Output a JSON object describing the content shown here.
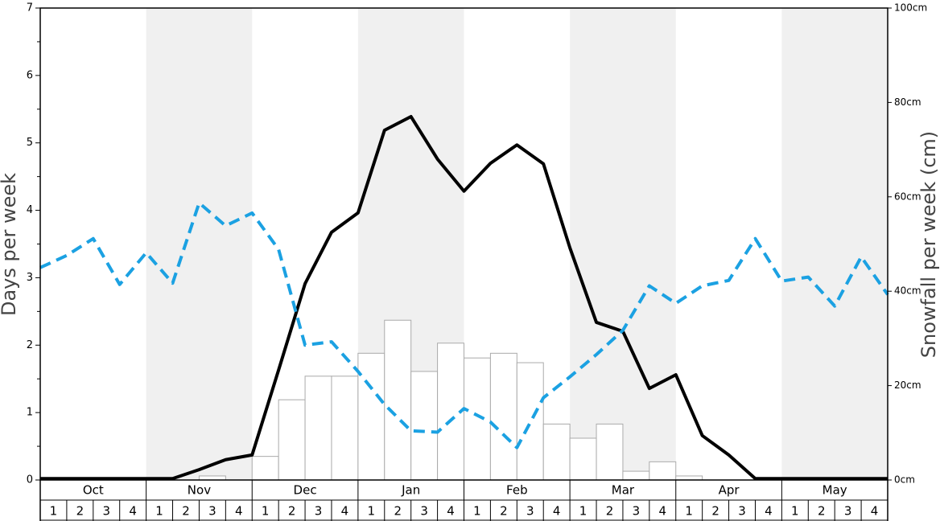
{
  "chart_data": {
    "type": "bar",
    "ylabel": "Days per week",
    "y2label": "Snowfall per week (cm)",
    "months": [
      "Oct",
      "Nov",
      "Dec",
      "Jan",
      "Feb",
      "Mar",
      "Apr",
      "May"
    ],
    "categories": [
      "1",
      "2",
      "3",
      "4",
      "1",
      "2",
      "3",
      "4",
      "1",
      "2",
      "3",
      "4",
      "1",
      "2",
      "3",
      "4",
      "1",
      "2",
      "3",
      "4",
      "1",
      "2",
      "3",
      "4",
      "1",
      "2",
      "3",
      "4",
      "1",
      "2",
      "3",
      "4"
    ],
    "values": [
      0,
      0,
      0,
      0,
      0,
      0,
      0.06,
      0,
      0.35,
      1.19,
      1.54,
      1.54,
      1.88,
      2.37,
      1.61,
      2.03,
      1.81,
      1.88,
      1.74,
      0.83,
      0.62,
      0.83,
      0.13,
      0.27,
      0.06,
      0,
      0,
      0,
      0,
      0,
      0,
      0
    ],
    "color": "#ffffff",
    "line_series": [
      {
        "color": "#000000",
        "axis": "y2",
        "dashed": false,
        "values": [
          0.3,
          0.3,
          0.3,
          0.3,
          0.3,
          0.3,
          2.2,
          4.3,
          5.3,
          23.3,
          41.6,
          52.5,
          56.6,
          74.1,
          77.0,
          68.0,
          61.2,
          67.1,
          71.0,
          67.0,
          49.2,
          33.4,
          31.5,
          19.4,
          22.3,
          9.4,
          5.3,
          0.3,
          0.3,
          0.3,
          0.3,
          0.3,
          0.3
        ]
      },
      {
        "color": "#1ba1e2",
        "axis": "y",
        "dashed": true,
        "values": [
          3.15,
          3.33,
          3.58,
          2.9,
          3.37,
          2.92,
          4.11,
          3.77,
          3.96,
          3.42,
          2.0,
          2.05,
          1.61,
          1.12,
          0.73,
          0.71,
          1.06,
          0.86,
          0.48,
          1.22,
          1.53,
          1.86,
          2.22,
          2.88,
          2.62,
          2.88,
          2.96,
          3.58,
          2.95,
          3.01,
          2.58,
          3.31,
          2.75
        ]
      }
    ],
    "ylim": [
      0,
      7
    ],
    "yticks": [
      0,
      1,
      2,
      3,
      4,
      5,
      6,
      7
    ],
    "y2lim": [
      0,
      100
    ],
    "y2ticks": [
      {
        "value": 0,
        "label": "0cm"
      },
      {
        "value": 20,
        "label": "20cm"
      },
      {
        "value": 40,
        "label": "40cm"
      },
      {
        "value": 60,
        "label": "60cm"
      },
      {
        "value": 80,
        "label": "80cm"
      },
      {
        "value": 100,
        "label": "100cm"
      }
    ]
  }
}
